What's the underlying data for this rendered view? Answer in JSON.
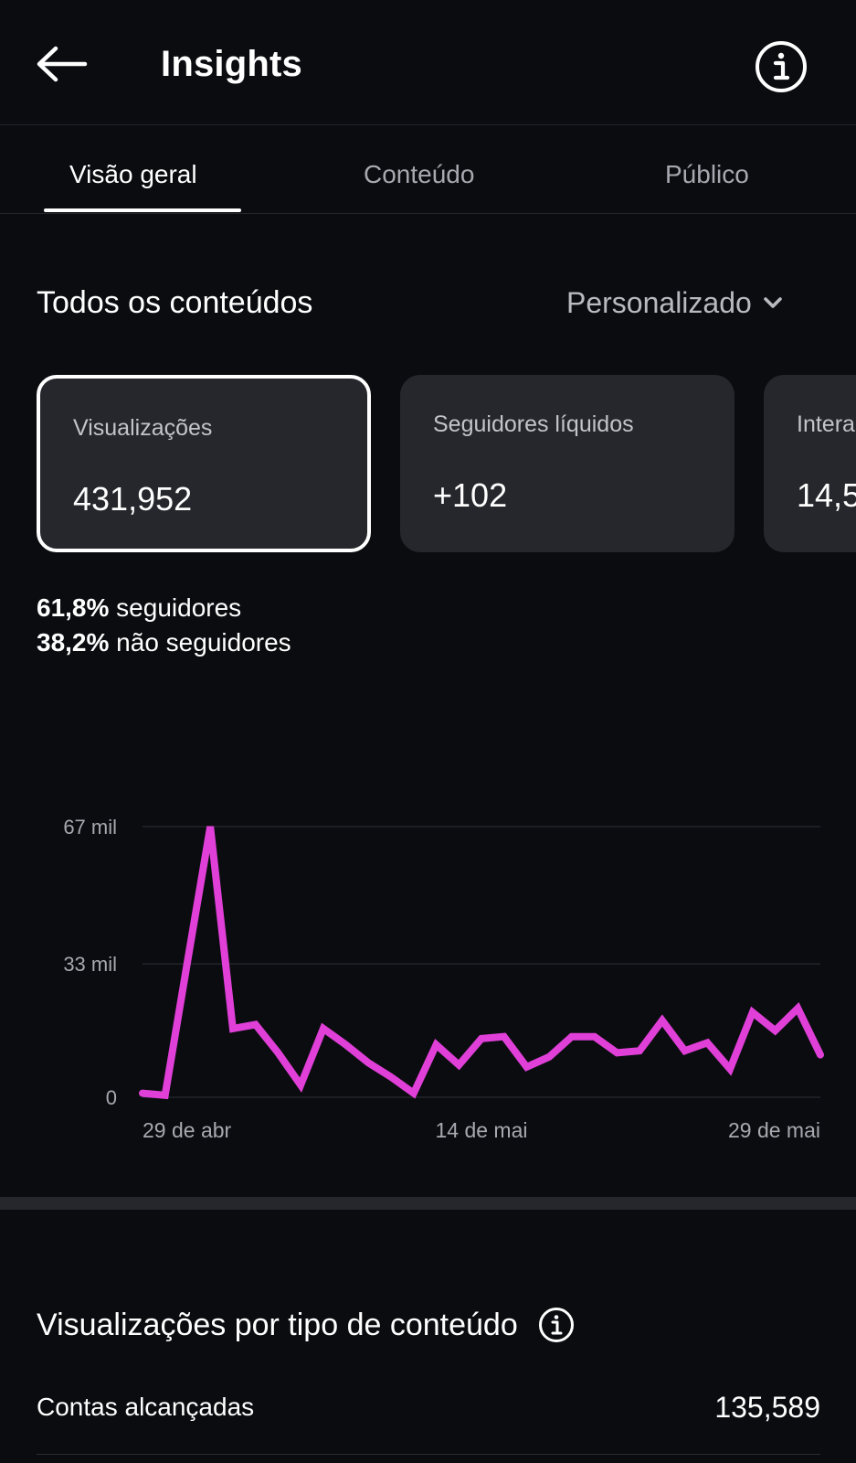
{
  "header": {
    "title": "Insights",
    "back_icon": "arrow-left-icon",
    "info_icon": "info-circle-icon"
  },
  "tabs": [
    {
      "label": "Visão geral",
      "active": true
    },
    {
      "label": "Conteúdo",
      "active": false
    },
    {
      "label": "Público",
      "active": false
    }
  ],
  "section": {
    "title": "Todos os conteúdos",
    "period_label": "Personalizado",
    "period_icon": "chevron-down-icon"
  },
  "cards": [
    {
      "label": "Visualizações",
      "value": "431,952",
      "selected": true
    },
    {
      "label": "Seguidores líquidos",
      "value": "+102",
      "selected": false
    },
    {
      "label": "Intera",
      "value": "14,5",
      "selected": false
    }
  ],
  "split": {
    "followers_pct": "61,8%",
    "followers_label": " seguidores",
    "nonfollowers_pct": "38,2%",
    "nonfollowers_label": " não seguidores"
  },
  "chart_data": {
    "type": "line",
    "y_tick_labels": [
      "0",
      "33 mil",
      "67 mil"
    ],
    "y_ticks": [
      0,
      33000,
      67000
    ],
    "ylim": [
      0,
      67000
    ],
    "x_tick_labels": [
      "29 de abr",
      "14 de mai",
      "29 de mai"
    ],
    "x_tick_indices": [
      1,
      16,
      31
    ],
    "grid": true,
    "color": "#e040d8",
    "series": [
      {
        "values": [
          1000,
          500,
          34000,
          67000,
          17000,
          18000,
          11000,
          3000,
          17000,
          13000,
          8500,
          5000,
          1000,
          13000,
          8000,
          14500,
          15000,
          7500,
          10000,
          15000,
          15000,
          11000,
          11500,
          19000,
          11500,
          13500,
          7000,
          21000,
          16500,
          22000,
          10500
        ]
      }
    ]
  },
  "content_type": {
    "title": "Visualizações por tipo de conteúdo",
    "info_icon": "info-circle-icon"
  },
  "reach": {
    "label": "Contas alcançadas",
    "value": "135,589"
  }
}
